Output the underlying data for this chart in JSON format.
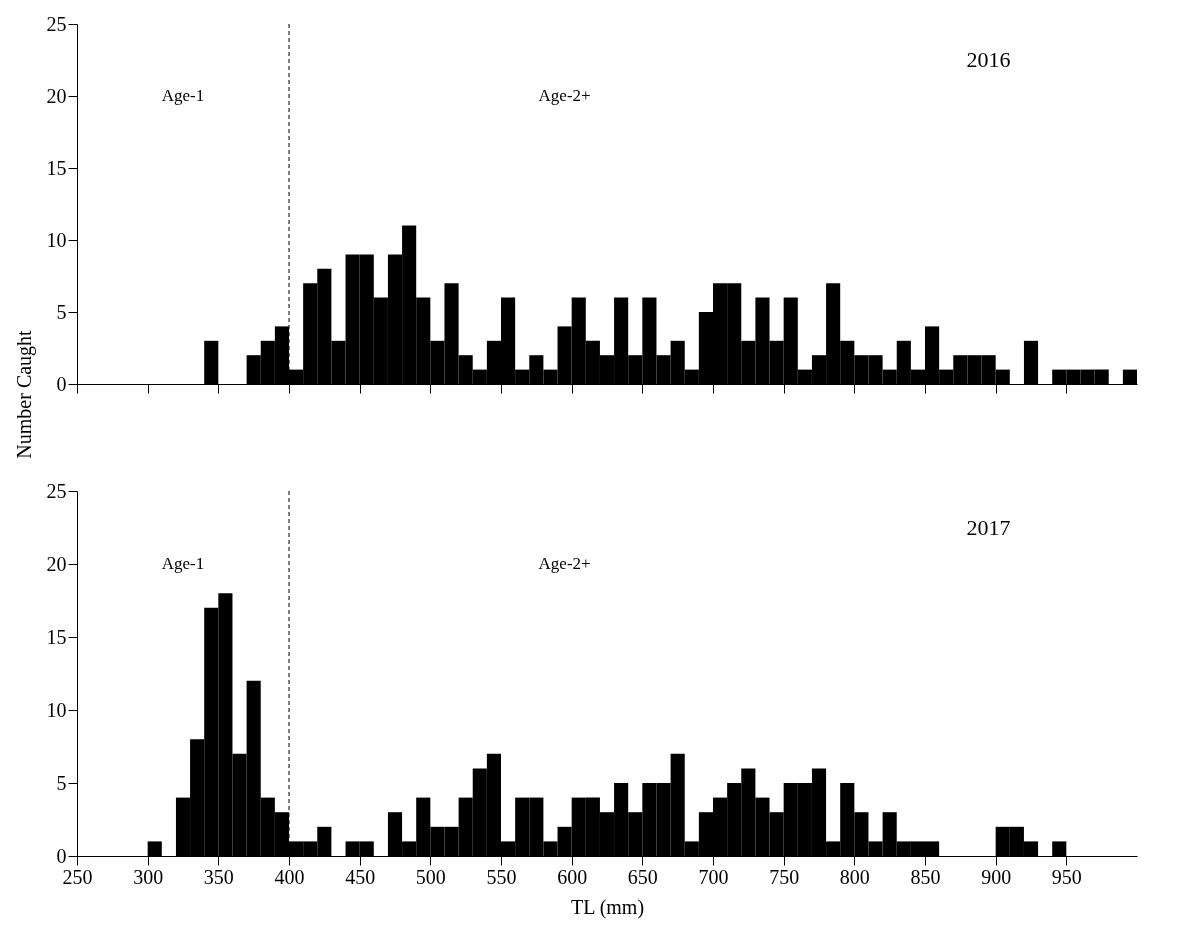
{
  "chart_data": [
    {
      "type": "histogram",
      "color": "#000000",
      "ylabel": "Number Caught",
      "tick_labels": "y",
      "bins": [
        250,
        260,
        270,
        280,
        290,
        300,
        310,
        320,
        330,
        340,
        350,
        360,
        370,
        380,
        390,
        400,
        410,
        420,
        430,
        440,
        450,
        460,
        470,
        480,
        490,
        500,
        510,
        520,
        530,
        540,
        550,
        560,
        570,
        580,
        590,
        600,
        610,
        620,
        630,
        640,
        650,
        660,
        670,
        680,
        690,
        700,
        710,
        720,
        730,
        740,
        750,
        760,
        770,
        780,
        790,
        800,
        810,
        820,
        830,
        840,
        850,
        860,
        870,
        880,
        890,
        900,
        910,
        920,
        930,
        940,
        950,
        960,
        970,
        980,
        990,
        1000
      ],
      "values": [
        0,
        0,
        0,
        0,
        0,
        0,
        0,
        0,
        0,
        3,
        0,
        0,
        2,
        3,
        4,
        1,
        7,
        8,
        3,
        9,
        9,
        6,
        9,
        11,
        6,
        3,
        7,
        2,
        1,
        3,
        6,
        1,
        2,
        1,
        4,
        6,
        3,
        2,
        6,
        2,
        6,
        2,
        3,
        1,
        5,
        7,
        7,
        3,
        6,
        3,
        6,
        1,
        2,
        7,
        3,
        2,
        2,
        1,
        3,
        1,
        4,
        1,
        2,
        2,
        2,
        1,
        0,
        3,
        0,
        1,
        1,
        1,
        1,
        0,
        1
      ],
      "xlim": [
        250,
        1000
      ],
      "xticks": [
        250,
        300,
        350,
        400,
        450,
        500,
        550,
        600,
        650,
        700,
        750,
        800,
        850,
        900,
        950
      ],
      "ylim": [
        0,
        25
      ],
      "yticks": [
        0,
        5,
        10,
        15,
        20,
        25
      ],
      "ref_lines": [
        {
          "axis": "x",
          "value": 400,
          "line_style": "dashed",
          "color": "#000000"
        }
      ],
      "annotations": [
        "Age-1",
        "Age-2+",
        "2016"
      ]
    },
    {
      "type": "histogram",
      "color": "#000000",
      "xlabel": "TL (mm)",
      "bins": [
        250,
        260,
        270,
        280,
        290,
        300,
        310,
        320,
        330,
        340,
        350,
        360,
        370,
        380,
        390,
        400,
        410,
        420,
        430,
        440,
        450,
        460,
        470,
        480,
        490,
        500,
        510,
        520,
        530,
        540,
        550,
        560,
        570,
        580,
        590,
        600,
        610,
        620,
        630,
        640,
        650,
        660,
        670,
        680,
        690,
        700,
        710,
        720,
        730,
        740,
        750,
        760,
        770,
        780,
        790,
        800,
        810,
        820,
        830,
        840,
        850,
        860,
        870,
        880,
        890,
        900,
        910,
        920,
        930,
        940,
        950,
        960,
        970,
        980,
        990,
        1000
      ],
      "values": [
        0,
        0,
        0,
        0,
        0,
        1,
        0,
        4,
        8,
        17,
        18,
        7,
        12,
        4,
        3,
        1,
        1,
        2,
        0,
        1,
        1,
        0,
        3,
        1,
        4,
        2,
        2,
        4,
        6,
        7,
        1,
        4,
        4,
        1,
        2,
        4,
        4,
        3,
        5,
        3,
        5,
        5,
        7,
        1,
        3,
        4,
        5,
        6,
        4,
        3,
        5,
        5,
        6,
        1,
        5,
        3,
        1,
        3,
        1,
        1,
        1,
        0,
        0,
        0,
        0,
        2,
        2,
        1,
        0,
        1,
        0,
        0,
        0,
        0,
        0
      ],
      "xlim": [
        250,
        1000
      ],
      "xticks": [
        250,
        300,
        350,
        400,
        450,
        500,
        550,
        600,
        650,
        700,
        750,
        800,
        850,
        900,
        950
      ],
      "ylim": [
        0,
        25
      ],
      "yticks": [
        0,
        5,
        10,
        15,
        20,
        25
      ],
      "ref_lines": [
        {
          "axis": "x",
          "value": 400,
          "line_style": "dashed",
          "color": "#000000"
        }
      ],
      "annotations": [
        "Age-1",
        "Age-2+",
        "2017"
      ]
    }
  ]
}
